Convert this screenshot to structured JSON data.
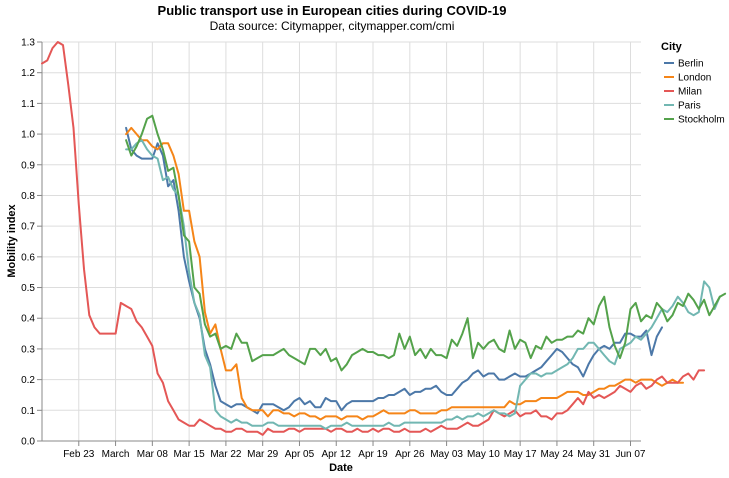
{
  "chart_data": {
    "type": "line",
    "title": "Public transport use in European cities during COVID-19",
    "subtitle": "Data source: Citymapper, citymapper.com/cmi",
    "xlabel": "Date",
    "ylabel": "Mobility index",
    "x_start": "2020-02-16",
    "x_end": "2020-06-09",
    "ylim": [
      0,
      1.3
    ],
    "y_ticks": [
      "0.0",
      "0.1",
      "0.2",
      "0.3",
      "0.4",
      "0.5",
      "0.6",
      "0.7",
      "0.8",
      "0.9",
      "1.0",
      "1.1",
      "1.2",
      "1.3"
    ],
    "x_ticks": [
      {
        "date": "2020-02-23",
        "label": "Feb 23"
      },
      {
        "date": "2020-03-01",
        "label": "March"
      },
      {
        "date": "2020-03-08",
        "label": "Mar 08"
      },
      {
        "date": "2020-03-15",
        "label": "Mar 15"
      },
      {
        "date": "2020-03-22",
        "label": "Mar 22"
      },
      {
        "date": "2020-03-29",
        "label": "Mar 29"
      },
      {
        "date": "2020-04-05",
        "label": "Apr 05"
      },
      {
        "date": "2020-04-12",
        "label": "Apr 12"
      },
      {
        "date": "2020-04-19",
        "label": "Apr 19"
      },
      {
        "date": "2020-04-26",
        "label": "Apr 26"
      },
      {
        "date": "2020-05-03",
        "label": "May 03"
      },
      {
        "date": "2020-05-10",
        "label": "May 10"
      },
      {
        "date": "2020-05-17",
        "label": "May 17"
      },
      {
        "date": "2020-05-24",
        "label": "May 24"
      },
      {
        "date": "2020-05-31",
        "label": "May 31"
      },
      {
        "date": "2020-06-07",
        "label": "Jun 07"
      }
    ],
    "grid": true,
    "legend_title": "City",
    "legend_position": "right",
    "series": [
      {
        "name": "Berlin",
        "color": "#4c78a8",
        "start": "2020-03-03",
        "values": [
          1.02,
          0.95,
          0.93,
          0.92,
          0.92,
          0.92,
          0.97,
          0.93,
          0.83,
          0.85,
          0.75,
          0.6,
          0.52,
          0.45,
          0.4,
          0.3,
          0.25,
          0.18,
          0.13,
          0.12,
          0.11,
          0.12,
          0.12,
          0.11,
          0.1,
          0.09,
          0.12,
          0.12,
          0.12,
          0.11,
          0.1,
          0.11,
          0.13,
          0.14,
          0.12,
          0.13,
          0.11,
          0.11,
          0.14,
          0.13,
          0.13,
          0.1,
          0.12,
          0.13,
          0.13,
          0.13,
          0.13,
          0.13,
          0.14,
          0.14,
          0.15,
          0.15,
          0.16,
          0.17,
          0.15,
          0.16,
          0.16,
          0.17,
          0.17,
          0.18,
          0.16,
          0.15,
          0.15,
          0.17,
          0.19,
          0.2,
          0.22,
          0.23,
          0.21,
          0.22,
          0.22,
          0.2,
          0.2,
          0.21,
          0.22,
          0.21,
          0.21,
          0.22,
          0.23,
          0.24,
          0.26,
          0.28,
          0.3,
          0.29,
          0.27,
          0.25,
          0.24,
          0.21,
          0.25,
          0.28,
          0.3,
          0.31,
          0.3,
          0.32,
          0.32,
          0.35,
          0.35,
          0.34,
          0.34,
          0.36,
          0.28,
          0.34,
          0.37
        ]
      },
      {
        "name": "London",
        "color": "#f58518",
        "start": "2020-03-03",
        "values": [
          1.0,
          1.02,
          1.0,
          0.98,
          0.98,
          0.96,
          0.95,
          0.97,
          0.97,
          0.93,
          0.87,
          0.75,
          0.75,
          0.65,
          0.6,
          0.42,
          0.35,
          0.38,
          0.3,
          0.23,
          0.23,
          0.25,
          0.14,
          0.11,
          0.1,
          0.1,
          0.1,
          0.08,
          0.1,
          0.1,
          0.09,
          0.09,
          0.08,
          0.09,
          0.09,
          0.08,
          0.08,
          0.07,
          0.08,
          0.08,
          0.08,
          0.07,
          0.08,
          0.08,
          0.08,
          0.07,
          0.08,
          0.08,
          0.09,
          0.1,
          0.09,
          0.09,
          0.09,
          0.09,
          0.1,
          0.1,
          0.09,
          0.09,
          0.09,
          0.09,
          0.1,
          0.1,
          0.11,
          0.11,
          0.11,
          0.11,
          0.11,
          0.11,
          0.11,
          0.11,
          0.11,
          0.11,
          0.11,
          0.13,
          0.12,
          0.12,
          0.13,
          0.13,
          0.13,
          0.14,
          0.14,
          0.14,
          0.14,
          0.15,
          0.16,
          0.16,
          0.16,
          0.15,
          0.15,
          0.16,
          0.17,
          0.17,
          0.18,
          0.18,
          0.19,
          0.2,
          0.2,
          0.19,
          0.2,
          0.2,
          0.2,
          0.19,
          0.18,
          0.19,
          0.2,
          0.19,
          0.19
        ]
      },
      {
        "name": "Milan",
        "color": "#e45756",
        "start": "2020-02-16",
        "values": [
          1.23,
          1.24,
          1.28,
          1.3,
          1.29,
          1.16,
          1.02,
          0.77,
          0.56,
          0.41,
          0.37,
          0.35,
          0.35,
          0.35,
          0.35,
          0.45,
          0.44,
          0.43,
          0.39,
          0.37,
          0.34,
          0.31,
          0.22,
          0.19,
          0.13,
          0.1,
          0.07,
          0.06,
          0.05,
          0.05,
          0.07,
          0.06,
          0.05,
          0.04,
          0.04,
          0.03,
          0.03,
          0.04,
          0.04,
          0.03,
          0.03,
          0.03,
          0.02,
          0.04,
          0.03,
          0.03,
          0.03,
          0.04,
          0.04,
          0.03,
          0.04,
          0.04,
          0.04,
          0.04,
          0.04,
          0.03,
          0.04,
          0.04,
          0.03,
          0.03,
          0.04,
          0.03,
          0.03,
          0.04,
          0.03,
          0.04,
          0.04,
          0.03,
          0.03,
          0.04,
          0.03,
          0.03,
          0.03,
          0.04,
          0.03,
          0.04,
          0.05,
          0.04,
          0.04,
          0.04,
          0.05,
          0.06,
          0.05,
          0.05,
          0.06,
          0.07,
          0.1,
          0.09,
          0.08,
          0.09,
          0.1,
          0.08,
          0.09,
          0.09,
          0.1,
          0.08,
          0.08,
          0.07,
          0.09,
          0.09,
          0.1,
          0.12,
          0.14,
          0.12,
          0.16,
          0.14,
          0.15,
          0.14,
          0.15,
          0.16,
          0.18,
          0.17,
          0.16,
          0.18,
          0.19,
          0.17,
          0.18,
          0.2,
          0.21,
          0.19,
          0.19,
          0.19,
          0.21,
          0.22,
          0.2,
          0.23,
          0.23
        ]
      },
      {
        "name": "Paris",
        "color": "#72b7b2",
        "start": "2020-03-03",
        "values": [
          0.95,
          0.95,
          0.97,
          0.98,
          0.95,
          0.93,
          0.92,
          0.85,
          0.86,
          0.82,
          0.8,
          0.7,
          0.55,
          0.45,
          0.41,
          0.28,
          0.24,
          0.1,
          0.08,
          0.07,
          0.06,
          0.07,
          0.06,
          0.06,
          0.05,
          0.05,
          0.05,
          0.06,
          0.06,
          0.05,
          0.05,
          0.05,
          0.05,
          0.05,
          0.05,
          0.05,
          0.05,
          0.05,
          0.04,
          0.05,
          0.05,
          0.05,
          0.06,
          0.05,
          0.05,
          0.05,
          0.05,
          0.05,
          0.05,
          0.05,
          0.06,
          0.05,
          0.05,
          0.06,
          0.06,
          0.06,
          0.06,
          0.06,
          0.06,
          0.06,
          0.06,
          0.07,
          0.07,
          0.08,
          0.07,
          0.08,
          0.08,
          0.09,
          0.08,
          0.09,
          0.1,
          0.09,
          0.09,
          0.08,
          0.09,
          0.18,
          0.2,
          0.22,
          0.22,
          0.21,
          0.22,
          0.22,
          0.23,
          0.24,
          0.25,
          0.27,
          0.3,
          0.3,
          0.32,
          0.32,
          0.3,
          0.28,
          0.26,
          0.25,
          0.3,
          0.31,
          0.32,
          0.34,
          0.33,
          0.35,
          0.37,
          0.4,
          0.43,
          0.42,
          0.44,
          0.47,
          0.45,
          0.42,
          0.41,
          0.42,
          0.52,
          0.5,
          0.43,
          0.47
        ]
      },
      {
        "name": "Stockholm",
        "color": "#54a24b",
        "start": "2020-03-03",
        "values": [
          0.98,
          0.93,
          0.96,
          1.0,
          1.05,
          1.06,
          1.0,
          0.95,
          0.88,
          0.89,
          0.8,
          0.67,
          0.65,
          0.5,
          0.48,
          0.38,
          0.34,
          0.35,
          0.3,
          0.31,
          0.3,
          0.35,
          0.32,
          0.32,
          0.26,
          0.27,
          0.28,
          0.28,
          0.28,
          0.29,
          0.3,
          0.28,
          0.27,
          0.26,
          0.25,
          0.3,
          0.3,
          0.28,
          0.3,
          0.26,
          0.27,
          0.23,
          0.25,
          0.28,
          0.29,
          0.3,
          0.29,
          0.29,
          0.28,
          0.28,
          0.27,
          0.28,
          0.35,
          0.3,
          0.34,
          0.28,
          0.3,
          0.27,
          0.3,
          0.28,
          0.28,
          0.27,
          0.33,
          0.31,
          0.35,
          0.4,
          0.27,
          0.32,
          0.3,
          0.32,
          0.33,
          0.3,
          0.29,
          0.36,
          0.3,
          0.33,
          0.32,
          0.27,
          0.31,
          0.3,
          0.34,
          0.32,
          0.33,
          0.33,
          0.34,
          0.34,
          0.36,
          0.35,
          0.4,
          0.38,
          0.44,
          0.47,
          0.37,
          0.31,
          0.27,
          0.32,
          0.43,
          0.45,
          0.39,
          0.41,
          0.4,
          0.45,
          0.43,
          0.39,
          0.41,
          0.45,
          0.44,
          0.48,
          0.46,
          0.43,
          0.46,
          0.41,
          0.44,
          0.47,
          0.48
        ]
      }
    ]
  }
}
